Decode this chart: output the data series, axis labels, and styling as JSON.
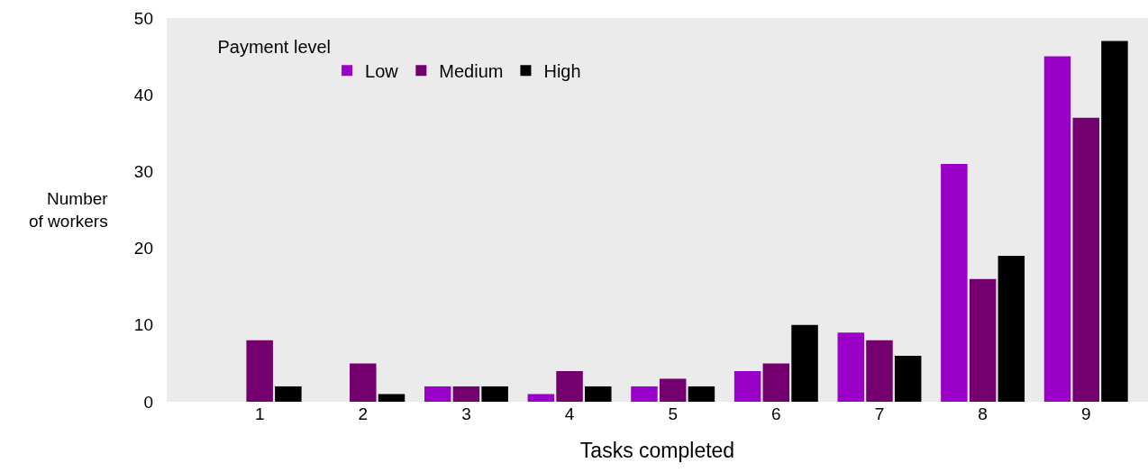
{
  "chart_data": {
    "type": "bar",
    "xlabel": "Tasks completed",
    "ylabel": "Number of workers",
    "legend_title": "Payment level",
    "categories": [
      "1",
      "2",
      "3",
      "4",
      "5",
      "6",
      "7",
      "8",
      "9"
    ],
    "series": [
      {
        "name": "Low",
        "color": "#9900c8",
        "values": [
          0,
          0,
          2,
          1,
          2,
          4,
          9,
          31,
          45
        ]
      },
      {
        "name": "Medium",
        "color": "#74006f",
        "values": [
          8,
          5,
          2,
          4,
          3,
          5,
          8,
          16,
          37
        ]
      },
      {
        "name": "High",
        "color": "#000000",
        "values": [
          2,
          1,
          2,
          2,
          2,
          10,
          6,
          19,
          47
        ]
      }
    ],
    "ylim": [
      0,
      50
    ],
    "yticks": [
      0,
      10,
      20,
      30,
      40,
      50
    ],
    "grid": false,
    "legend": "top left"
  }
}
